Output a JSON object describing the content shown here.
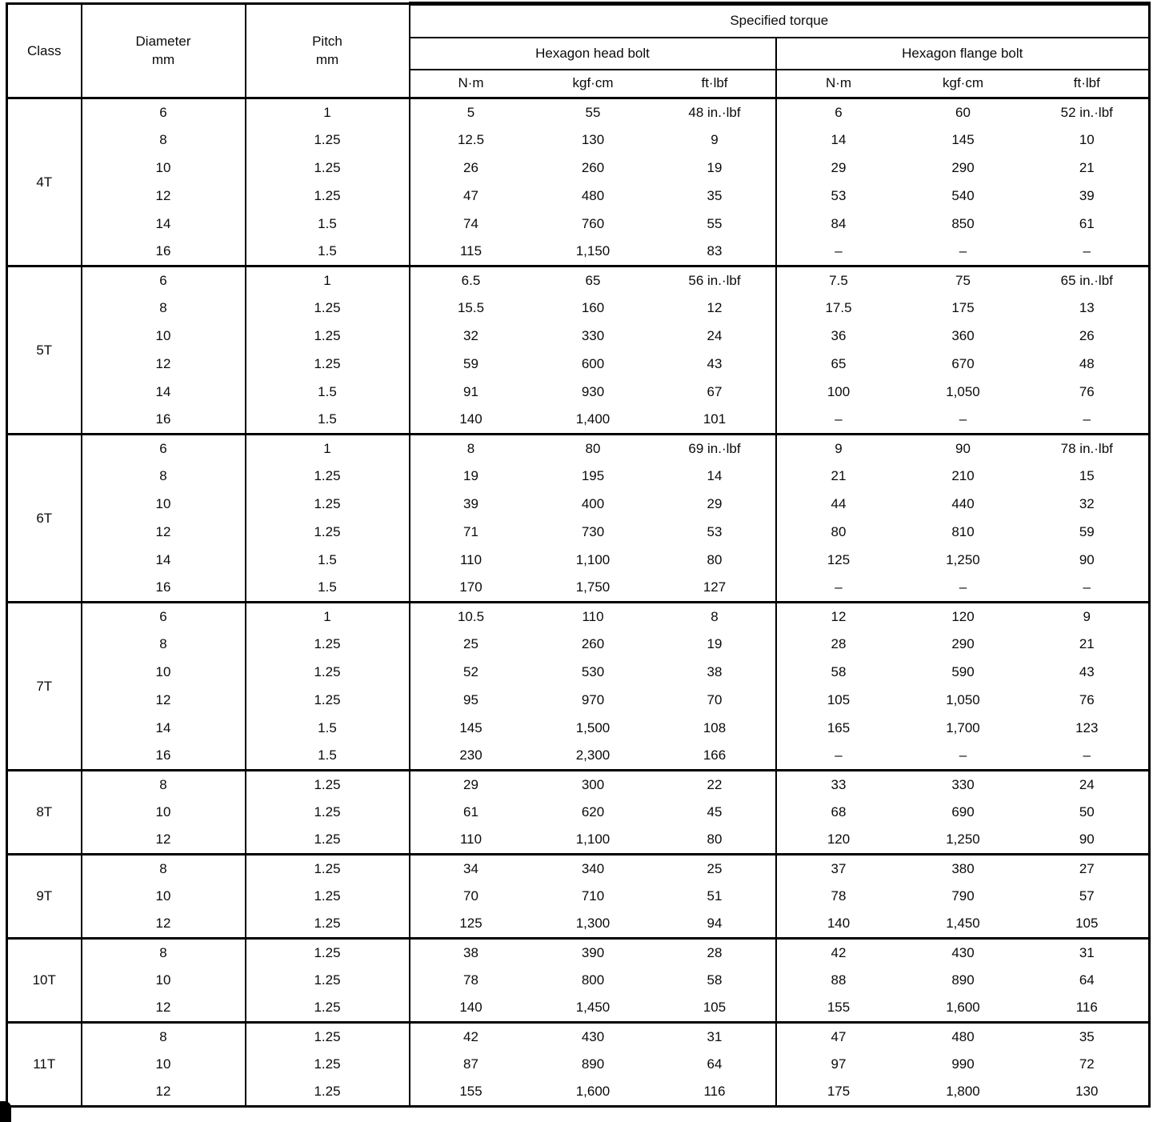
{
  "table": {
    "headers": {
      "class": "Class",
      "diameter": "Diameter",
      "diameter_unit": "mm",
      "pitch": "Pitch",
      "pitch_unit": "mm",
      "specified_torque": "Specified torque",
      "hex_head": "Hexagon head bolt",
      "hex_flange": "Hexagon flange bolt",
      "unit_nm": "N·m",
      "unit_kgfcm": "kgf·cm",
      "unit_ftlbf": "ft·lbf"
    },
    "groups": [
      {
        "class_label": "4T",
        "rows": [
          [
            "6",
            "1",
            "5",
            "55",
            "48 in.·lbf",
            "6",
            "60",
            "52 in.·lbf"
          ],
          [
            "8",
            "1.25",
            "12.5",
            "130",
            "9",
            "14",
            "145",
            "10"
          ],
          [
            "10",
            "1.25",
            "26",
            "260",
            "19",
            "29",
            "290",
            "21"
          ],
          [
            "12",
            "1.25",
            "47",
            "480",
            "35",
            "53",
            "540",
            "39"
          ],
          [
            "14",
            "1.5",
            "74",
            "760",
            "55",
            "84",
            "850",
            "61"
          ],
          [
            "16",
            "1.5",
            "115",
            "1,150",
            "83",
            "–",
            "–",
            "–"
          ]
        ]
      },
      {
        "class_label": "5T",
        "rows": [
          [
            "6",
            "1",
            "6.5",
            "65",
            "56 in.·lbf",
            "7.5",
            "75",
            "65 in.·lbf"
          ],
          [
            "8",
            "1.25",
            "15.5",
            "160",
            "12",
            "17.5",
            "175",
            "13"
          ],
          [
            "10",
            "1.25",
            "32",
            "330",
            "24",
            "36",
            "360",
            "26"
          ],
          [
            "12",
            "1.25",
            "59",
            "600",
            "43",
            "65",
            "670",
            "48"
          ],
          [
            "14",
            "1.5",
            "91",
            "930",
            "67",
            "100",
            "1,050",
            "76"
          ],
          [
            "16",
            "1.5",
            "140",
            "1,400",
            "101",
            "–",
            "–",
            "–"
          ]
        ]
      },
      {
        "class_label": "6T",
        "rows": [
          [
            "6",
            "1",
            "8",
            "80",
            "69 in.·lbf",
            "9",
            "90",
            "78 in.·lbf"
          ],
          [
            "8",
            "1.25",
            "19",
            "195",
            "14",
            "21",
            "210",
            "15"
          ],
          [
            "10",
            "1.25",
            "39",
            "400",
            "29",
            "44",
            "440",
            "32"
          ],
          [
            "12",
            "1.25",
            "71",
            "730",
            "53",
            "80",
            "810",
            "59"
          ],
          [
            "14",
            "1.5",
            "110",
            "1,100",
            "80",
            "125",
            "1,250",
            "90"
          ],
          [
            "16",
            "1.5",
            "170",
            "1,750",
            "127",
            "–",
            "–",
            "–"
          ]
        ]
      },
      {
        "class_label": "7T",
        "rows": [
          [
            "6",
            "1",
            "10.5",
            "110",
            "8",
            "12",
            "120",
            "9"
          ],
          [
            "8",
            "1.25",
            "25",
            "260",
            "19",
            "28",
            "290",
            "21"
          ],
          [
            "10",
            "1.25",
            "52",
            "530",
            "38",
            "58",
            "590",
            "43"
          ],
          [
            "12",
            "1.25",
            "95",
            "970",
            "70",
            "105",
            "1,050",
            "76"
          ],
          [
            "14",
            "1.5",
            "145",
            "1,500",
            "108",
            "165",
            "1,700",
            "123"
          ],
          [
            "16",
            "1.5",
            "230",
            "2,300",
            "166",
            "–",
            "–",
            "–"
          ]
        ]
      },
      {
        "class_label": "8T",
        "rows": [
          [
            "8",
            "1.25",
            "29",
            "300",
            "22",
            "33",
            "330",
            "24"
          ],
          [
            "10",
            "1.25",
            "61",
            "620",
            "45",
            "68",
            "690",
            "50"
          ],
          [
            "12",
            "1.25",
            "110",
            "1,100",
            "80",
            "120",
            "1,250",
            "90"
          ]
        ]
      },
      {
        "class_label": "9T",
        "rows": [
          [
            "8",
            "1.25",
            "34",
            "340",
            "25",
            "37",
            "380",
            "27"
          ],
          [
            "10",
            "1.25",
            "70",
            "710",
            "51",
            "78",
            "790",
            "57"
          ],
          [
            "12",
            "1.25",
            "125",
            "1,300",
            "94",
            "140",
            "1,450",
            "105"
          ]
        ]
      },
      {
        "class_label": "10T",
        "rows": [
          [
            "8",
            "1.25",
            "38",
            "390",
            "28",
            "42",
            "430",
            "31"
          ],
          [
            "10",
            "1.25",
            "78",
            "800",
            "58",
            "88",
            "890",
            "64"
          ],
          [
            "12",
            "1.25",
            "140",
            "1,450",
            "105",
            "155",
            "1,600",
            "116"
          ]
        ]
      },
      {
        "class_label": "11T",
        "rows": [
          [
            "8",
            "1.25",
            "42",
            "430",
            "31",
            "47",
            "480",
            "35"
          ],
          [
            "10",
            "1.25",
            "87",
            "890",
            "64",
            "97",
            "990",
            "72"
          ],
          [
            "12",
            "1.25",
            "155",
            "1,600",
            "116",
            "175",
            "1,800",
            "130"
          ]
        ]
      }
    ]
  }
}
